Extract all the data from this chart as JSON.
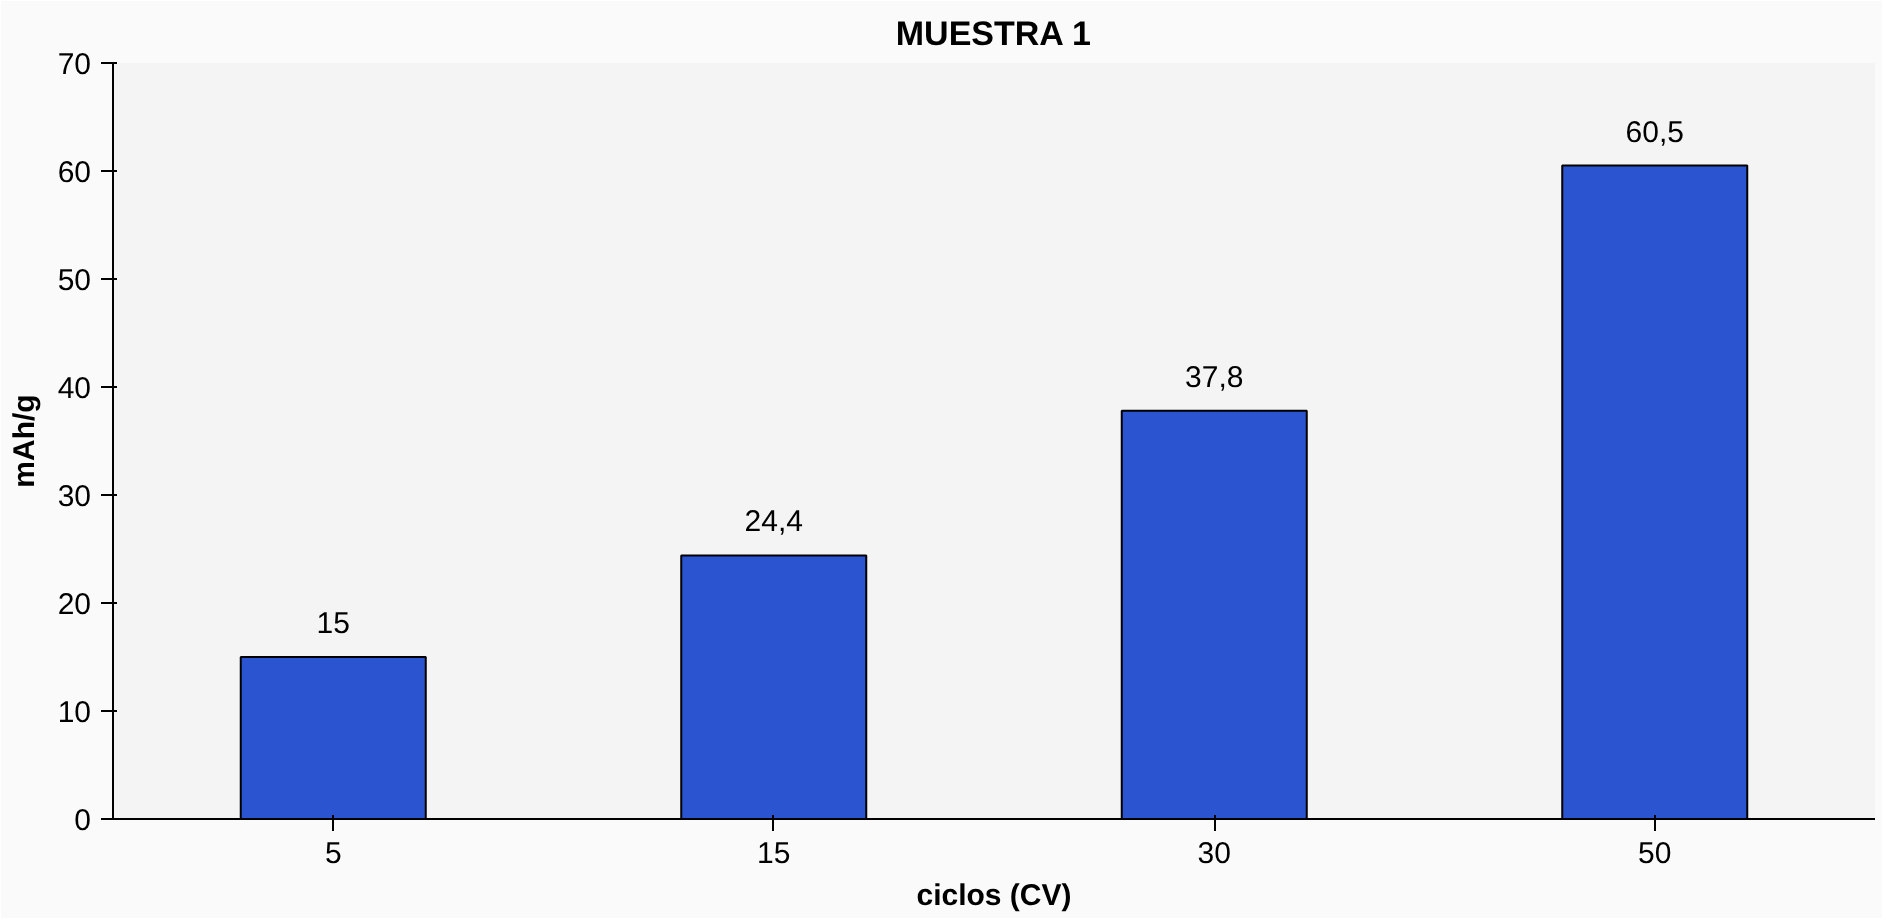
{
  "chart_data": {
    "type": "bar",
    "title": "MUESTRA 1",
    "xlabel": "ciclos (CV)",
    "ylabel": "mAh/g",
    "categories": [
      "5",
      "15",
      "30",
      "50"
    ],
    "values": [
      15,
      24.4,
      37.8,
      60.5
    ],
    "value_labels": [
      "15",
      "24,4",
      "37,8",
      "60,5"
    ],
    "color": "#2b55d0",
    "ylim": [
      0,
      70
    ],
    "yticks": [
      0,
      10,
      20,
      30,
      40,
      50,
      60,
      70
    ],
    "grid": false
  }
}
